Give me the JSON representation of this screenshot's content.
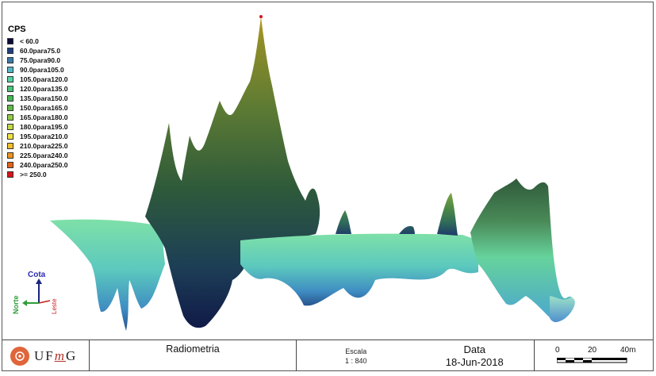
{
  "legend": {
    "title": "CPS",
    "items": [
      {
        "label": "< 60.0",
        "color": "#0a0c3a"
      },
      {
        "label": "60.0para75.0",
        "color": "#1f3f7c"
      },
      {
        "label": "75.0para90.0",
        "color": "#3c78a8"
      },
      {
        "label": "90.0para105.0",
        "color": "#57b5c6"
      },
      {
        "label": "105.0para120.0",
        "color": "#54d2a4"
      },
      {
        "label": "120.0para135.0",
        "color": "#4ec37c"
      },
      {
        "label": "135.0para150.0",
        "color": "#46b656"
      },
      {
        "label": "150.0para165.0",
        "color": "#60b84a"
      },
      {
        "label": "165.0para180.0",
        "color": "#8fcb4a"
      },
      {
        "label": "180.0para195.0",
        "color": "#c0d84a"
      },
      {
        "label": "195.0para210.0",
        "color": "#eee247"
      },
      {
        "label": "210.0para225.0",
        "color": "#f2be30"
      },
      {
        "label": "225.0para240.0",
        "color": "#ea9520"
      },
      {
        "label": "240.0para250.0",
        "color": "#e06418"
      },
      {
        "label": ">= 250.0",
        "color": "#d8141a"
      }
    ]
  },
  "axes": {
    "up": "Cota",
    "north": "Norte",
    "east": "Leste"
  },
  "footer": {
    "logo": {
      "u": "UF",
      "m": "m",
      "g": "G"
    },
    "title": "Radiometria",
    "escala_label": "Escala",
    "escala_value": "1 : 840",
    "data_label": "Data",
    "data_value": "18-Jun-2018",
    "scale_ticks": [
      "0",
      "20",
      "40m"
    ]
  }
}
